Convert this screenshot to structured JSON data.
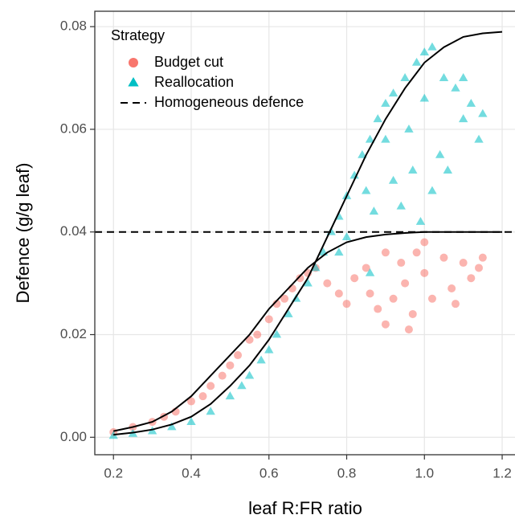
{
  "chart_data": {
    "type": "scatter",
    "xlabel": "leaf R:FR ratio",
    "ylabel": "Defence (g/g leaf)",
    "xlim": [
      0.152,
      1.233
    ],
    "ylim": [
      -0.0034,
      0.083
    ],
    "xticks": [
      0.2,
      0.4,
      0.6,
      0.8,
      {
        "value": 1,
        "label": "1.0"
      },
      1.2
    ],
    "yticks": [
      {
        "value": 0,
        "label": "0.00"
      },
      {
        "value": 0.02,
        "label": "0.02"
      },
      {
        "value": 0.04,
        "label": "0.04"
      },
      {
        "value": 0.06,
        "label": "0.06"
      },
      {
        "value": 0.08,
        "label": "0.08"
      }
    ],
    "grid": true,
    "legend_title": "Strategy",
    "legend_position": "top-left",
    "series": [
      {
        "name": "Budget cut",
        "color": "#F8766D",
        "marker": "circle",
        "x": [
          0.2,
          0.25,
          0.3,
          0.33,
          0.36,
          0.4,
          0.43,
          0.45,
          0.48,
          0.5,
          0.52,
          0.55,
          0.57,
          0.6,
          0.62,
          0.64,
          0.66,
          0.68,
          0.7,
          0.72,
          0.75,
          0.78,
          0.8,
          0.82,
          0.85,
          0.86,
          0.88,
          0.9,
          0.92,
          0.94,
          0.95,
          0.97,
          0.98,
          1.0,
          1.02,
          1.05,
          1.07,
          1.08,
          1.1,
          1.12,
          1.14,
          1.15,
          0.9,
          1.0,
          0.96
        ],
        "values": [
          0.001,
          0.002,
          0.003,
          0.004,
          0.005,
          0.007,
          0.008,
          0.01,
          0.012,
          0.014,
          0.016,
          0.019,
          0.02,
          0.023,
          0.026,
          0.027,
          0.029,
          0.031,
          0.032,
          0.033,
          0.03,
          0.028,
          0.026,
          0.031,
          0.033,
          0.028,
          0.025,
          0.022,
          0.027,
          0.034,
          0.03,
          0.024,
          0.036,
          0.032,
          0.027,
          0.035,
          0.029,
          0.026,
          0.034,
          0.031,
          0.033,
          0.035,
          0.036,
          0.038,
          0.021
        ]
      },
      {
        "name": "Reallocation",
        "color": "#00BFC4",
        "marker": "triangle",
        "x": [
          0.2,
          0.25,
          0.3,
          0.35,
          0.4,
          0.45,
          0.5,
          0.53,
          0.55,
          0.58,
          0.6,
          0.62,
          0.65,
          0.67,
          0.7,
          0.72,
          0.74,
          0.76,
          0.78,
          0.8,
          0.82,
          0.84,
          0.86,
          0.88,
          0.9,
          0.92,
          0.95,
          0.98,
          1.0,
          1.02,
          0.78,
          0.8,
          0.85,
          0.87,
          0.9,
          0.92,
          0.94,
          0.96,
          0.97,
          0.99,
          1.0,
          1.02,
          1.04,
          1.06,
          1.08,
          1.1,
          1.12,
          1.14,
          1.15,
          1.1,
          1.05,
          0.86
        ],
        "values": [
          0.0003,
          0.0007,
          0.0012,
          0.002,
          0.003,
          0.005,
          0.008,
          0.01,
          0.012,
          0.015,
          0.017,
          0.02,
          0.024,
          0.027,
          0.03,
          0.033,
          0.036,
          0.04,
          0.043,
          0.047,
          0.051,
          0.055,
          0.058,
          0.062,
          0.065,
          0.067,
          0.07,
          0.073,
          0.075,
          0.076,
          0.036,
          0.039,
          0.048,
          0.044,
          0.058,
          0.05,
          0.045,
          0.06,
          0.052,
          0.042,
          0.066,
          0.048,
          0.055,
          0.052,
          0.068,
          0.062,
          0.065,
          0.058,
          0.063,
          0.07,
          0.07,
          0.032
        ]
      }
    ],
    "curves": [
      {
        "color": "#000000",
        "x": [
          0.2,
          0.25,
          0.3,
          0.35,
          0.4,
          0.45,
          0.5,
          0.55,
          0.6,
          0.65,
          0.7,
          0.75,
          0.8,
          0.85,
          0.9,
          0.95,
          1.0,
          1.05,
          1.1,
          1.15,
          1.2
        ],
        "values": [
          0.0012,
          0.002,
          0.003,
          0.005,
          0.008,
          0.012,
          0.016,
          0.02,
          0.025,
          0.029,
          0.033,
          0.036,
          0.038,
          0.039,
          0.0395,
          0.0398,
          0.04,
          0.04,
          0.04,
          0.04,
          0.04
        ]
      },
      {
        "color": "#000000",
        "x": [
          0.2,
          0.25,
          0.3,
          0.35,
          0.4,
          0.45,
          0.5,
          0.55,
          0.6,
          0.65,
          0.7,
          0.75,
          0.8,
          0.85,
          0.9,
          0.95,
          1.0,
          1.05,
          1.1,
          1.15,
          1.2
        ],
        "values": [
          0.0005,
          0.0009,
          0.0015,
          0.0025,
          0.004,
          0.0065,
          0.01,
          0.014,
          0.019,
          0.025,
          0.031,
          0.039,
          0.047,
          0.055,
          0.062,
          0.068,
          0.073,
          0.076,
          0.078,
          0.0787,
          0.079
        ]
      }
    ],
    "reference_line": {
      "name": "Homogeneous defence",
      "value": 0.04,
      "color": "#000000",
      "style": "dashed"
    }
  }
}
